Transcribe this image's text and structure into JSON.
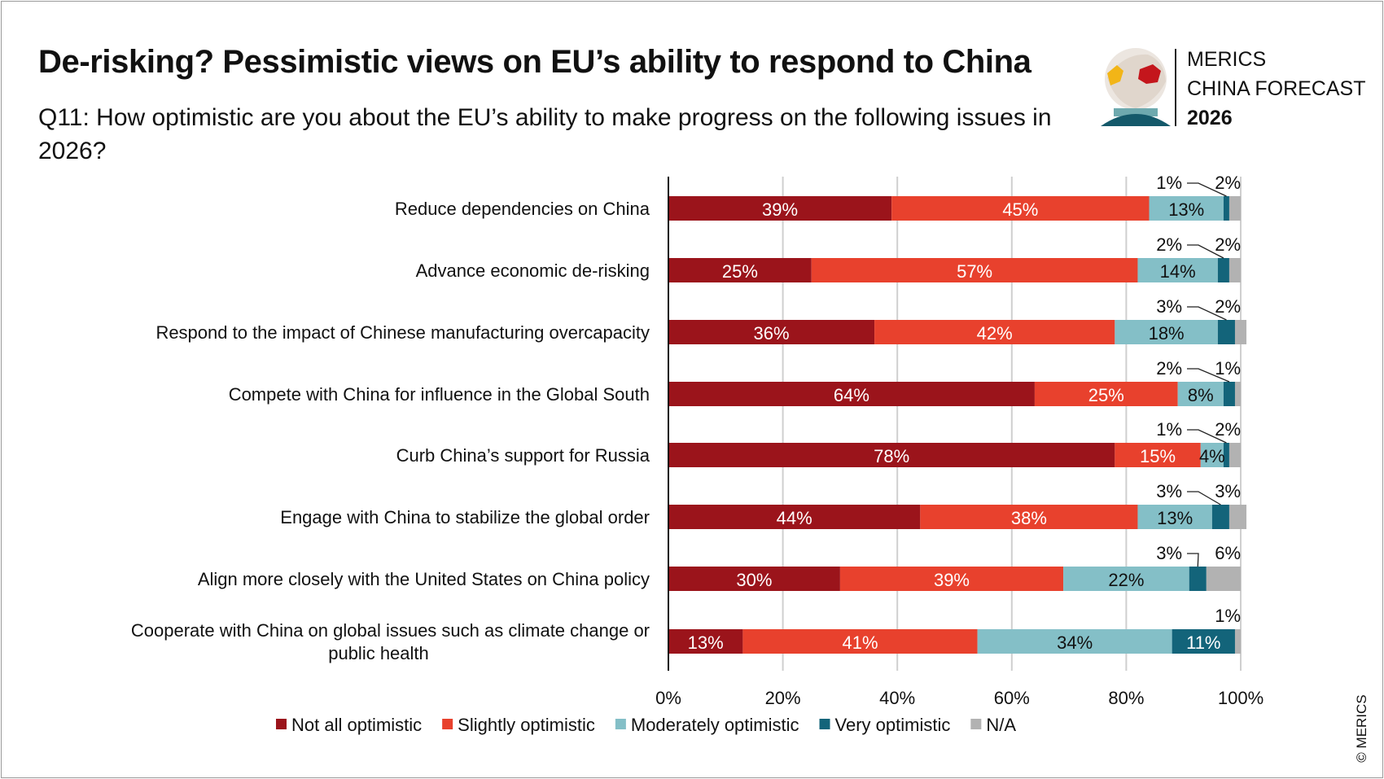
{
  "header": {
    "title": "De-risking? Pessimistic views on EU’s ability to respond to China",
    "subtitle": "Q11: How optimistic are you about the EU’s ability to make progress on the following issues in 2026?"
  },
  "logo": {
    "line1": "MERICS",
    "line2": "CHINA FORECAST",
    "line3": "2026"
  },
  "copyright": "© MERICS",
  "chart_data": {
    "type": "bar",
    "orientation": "horizontal",
    "stacked": true,
    "categories": [
      "Reduce dependencies on China",
      "Advance economic de-risking",
      "Respond to the impact of Chinese manufacturing overcapacity",
      "Compete with China for influence in the Global South",
      "Curb China’s support for Russia",
      "Engage with China to stabilize the global order",
      "Align more closely with the United States on China policy",
      "Cooperate with China on global issues such as climate change or public health"
    ],
    "series": [
      {
        "name": "Not all optimistic",
        "color": "#9b141b",
        "values": [
          39,
          25,
          36,
          64,
          78,
          44,
          30,
          13
        ]
      },
      {
        "name": "Slightly optimistic",
        "color": "#e8412d",
        "values": [
          45,
          57,
          42,
          25,
          15,
          38,
          39,
          41
        ]
      },
      {
        "name": "Moderately optimistic",
        "color": "#84bfc7",
        "values": [
          13,
          14,
          18,
          8,
          4,
          13,
          22,
          34
        ]
      },
      {
        "name": "Very optimistic",
        "color": "#13647a",
        "values": [
          1,
          2,
          3,
          2,
          1,
          3,
          3,
          11
        ]
      },
      {
        "name": "N/A",
        "color": "#b2b2b2",
        "values": [
          2,
          2,
          2,
          1,
          2,
          3,
          6,
          1
        ]
      }
    ],
    "xlim": [
      0,
      100
    ],
    "xticks": [
      "0%",
      "20%",
      "40%",
      "60%",
      "80%",
      "100%"
    ],
    "grid": true,
    "legend": "bottom"
  }
}
